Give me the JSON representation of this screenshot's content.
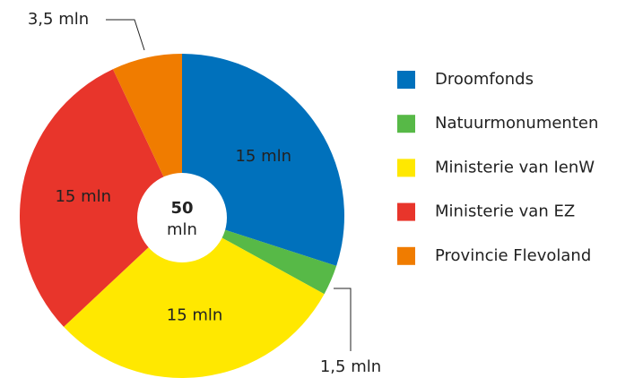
{
  "chart_data": {
    "type": "pie",
    "categories": [
      "Droomfonds",
      "Natuurmonumenten",
      "Ministerie van IenW",
      "Ministerie van EZ",
      "Provincie Flevoland"
    ],
    "values": [
      15,
      1.5,
      15,
      15,
      3.5
    ],
    "value_labels": [
      "15 mln",
      "1,5 mln",
      "15 mln",
      "15 mln",
      "3,5 mln"
    ],
    "colors": [
      "#0071bc",
      "#57b947",
      "#ffe800",
      "#e8352b",
      "#f07c00"
    ],
    "center_label": {
      "value": "50",
      "unit": "mln"
    },
    "legend": "right"
  }
}
